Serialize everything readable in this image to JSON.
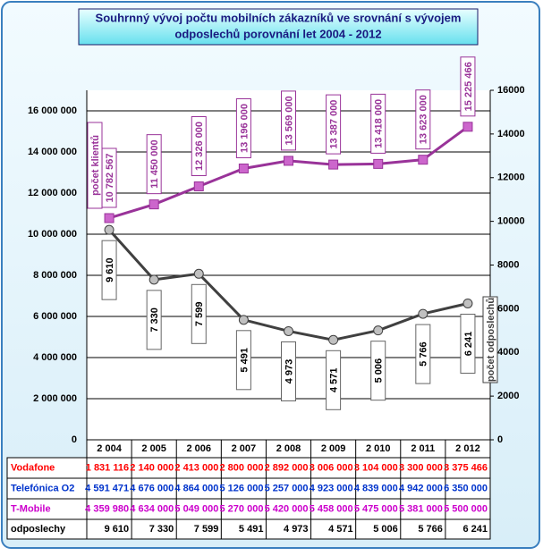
{
  "chart_data": {
    "type": "line",
    "title": "Souhrnný vývoj počtu  mobilních zákazníků ve srovnání s vývojem",
    "subtitle": "odposlechů porovnání let 2004 - 2012",
    "categories": [
      "2 004",
      "2 005",
      "2 006",
      "2 007",
      "2 008",
      "2 009",
      "2 010",
      "2 011",
      "2 012"
    ],
    "series": [
      {
        "name": "počet klientů",
        "color": "#993399",
        "values": [
          10782567,
          11450000,
          12326000,
          13196000,
          13569000,
          13387000,
          13418000,
          13623000,
          15225466
        ],
        "value_labels": [
          "10 782 567",
          "11 450 000",
          "12 326 000",
          "13 196 000",
          "13 569 000",
          "13 387 000",
          "13 418 000",
          "13 623 000",
          "15 225 466"
        ]
      },
      {
        "name": "počet odposlechů",
        "color": "#404040",
        "axis": "y2",
        "values": [
          9610,
          7330,
          7599,
          5491,
          4973,
          4571,
          5006,
          5766,
          6241
        ],
        "value_labels": [
          "9 610",
          "7 330",
          "7 599",
          "5 491",
          "4 973",
          "4 571",
          "5 006",
          "5 766",
          "6 241"
        ]
      }
    ],
    "ylim": [
      0,
      17000000
    ],
    "yticks": [
      0,
      {
        "value": 2000000,
        "label": "2 000 000"
      },
      {
        "value": 4000000,
        "label": "4 000 000"
      },
      {
        "value": 6000000,
        "label": "6 000 000"
      },
      {
        "value": 8000000,
        "label": "8 000 000"
      },
      {
        "value": 10000000,
        "label": "10 000 000"
      },
      {
        "value": 12000000,
        "label": "12 000 000"
      },
      {
        "value": 14000000,
        "label": "14 000 000"
      },
      {
        "value": 16000000,
        "label": "16 000 000"
      }
    ],
    "y2lim": [
      0,
      16000
    ],
    "y2ticks": [
      0,
      2000,
      4000,
      6000,
      8000,
      10000,
      12000,
      14000,
      16000
    ],
    "grid": true,
    "table": {
      "rows": [
        {
          "label": "Vodafone",
          "color": "#ff0000",
          "cells": [
            "1 831 116",
            "2 140 000",
            "2 413 000",
            "2 800 000",
            "2 892 000",
            "3 006 000",
            "3 104 000",
            "3 300 000",
            "3 375 466"
          ]
        },
        {
          "label": "Telefónica O2",
          "color": "#0033cc",
          "cells": [
            "4 591 471",
            "4 676 000",
            "4 864 000",
            "5 126 000",
            "5 257 000",
            "4 923 000",
            "4 839 000",
            "4 942 000",
            "6 350 000"
          ]
        },
        {
          "label": "T-Mobile",
          "color": "#cc00cc",
          "cells": [
            "4 359 980",
            "4 634 000",
            "5 049 000",
            "5 270 000",
            "5 420 000",
            "5 458 000",
            "5 475 000",
            "5 381 000",
            "5 500 000"
          ]
        },
        {
          "label": "odposlechy",
          "color": "#000000",
          "cells": [
            "9 610",
            "7 330",
            "7 599",
            "5 491",
            "4 973",
            "4 571",
            "5 006",
            "5 766",
            "6 241"
          ]
        }
      ]
    }
  }
}
